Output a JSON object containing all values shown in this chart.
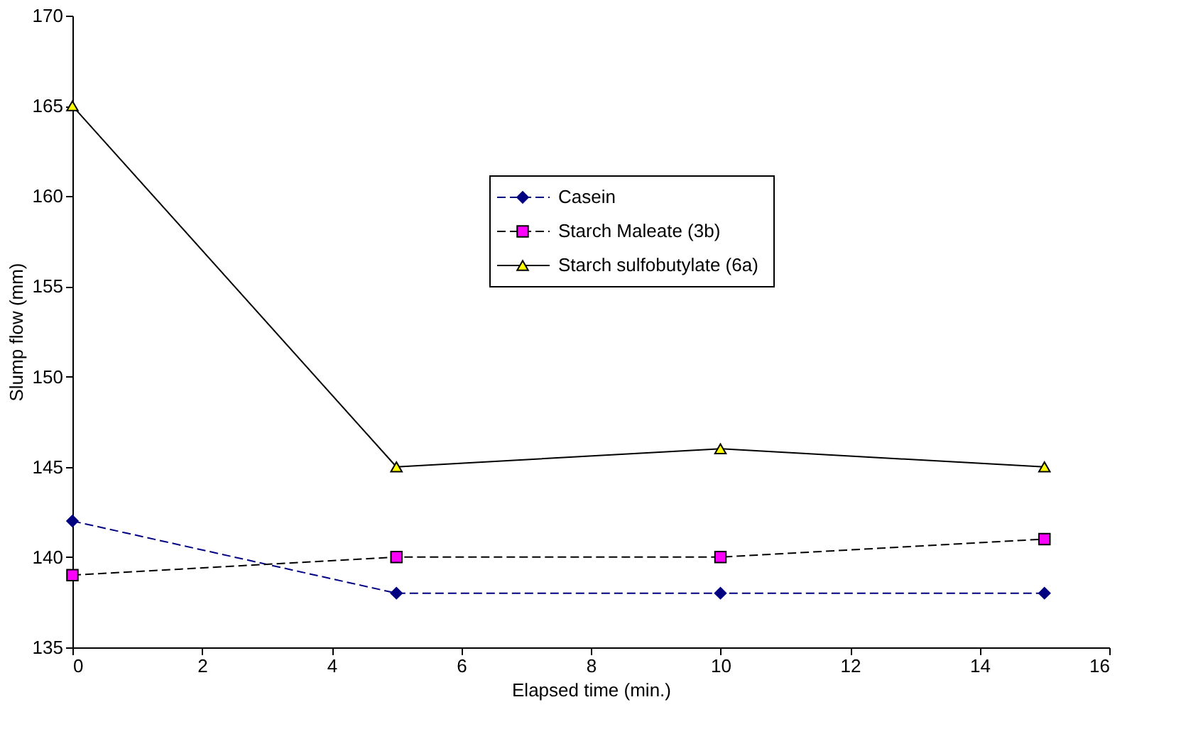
{
  "chart_data": {
    "type": "line",
    "x": [
      0,
      5,
      10,
      15
    ],
    "series": [
      {
        "name": "Casein",
        "color": "#000080",
        "colors": [
          "#000080",
          "#000080",
          "#000080",
          "#000080"
        ],
        "marker": "diamond",
        "line_style": "dashed",
        "values": [
          142,
          138,
          138,
          138
        ]
      },
      {
        "name": "Starch Maleate (3b)",
        "color": "#000000",
        "colors": [
          "#ff00ff",
          "#ff00ff",
          "#ff00ff",
          "#ff00ff"
        ],
        "marker": "square",
        "line_style": "dashed",
        "values": [
          139,
          140,
          140,
          141
        ]
      },
      {
        "name": "Starch sulfobutylate (6a)",
        "color": "#000000",
        "colors": [
          "#ffff00",
          "#ffff00",
          "#ffff00",
          "#ffff00"
        ],
        "marker": "triangle",
        "line_style": "solid",
        "values": [
          165,
          145,
          146,
          145
        ]
      }
    ],
    "xlabel": "Elapsed time (min.)",
    "ylabel": "Slump flow (mm)",
    "xlim": [
      0,
      16
    ],
    "xticks": [
      0,
      2,
      4,
      6,
      8,
      10,
      12,
      14,
      16
    ],
    "ylim": [
      135,
      170
    ],
    "yticks": [
      135,
      140,
      145,
      150,
      155,
      160,
      165,
      170
    ],
    "grid": false,
    "legend": "top right"
  }
}
